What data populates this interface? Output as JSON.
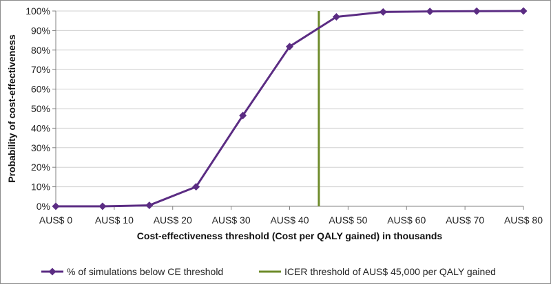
{
  "chart_data": {
    "type": "line",
    "title": "",
    "xlabel": "Cost-effectiveness threshold (Cost per QALY gained) in thousands",
    "ylabel": "Probability of cost-effectiveness",
    "x": [
      0,
      8,
      16,
      24,
      32,
      40,
      48,
      56,
      64,
      72,
      80
    ],
    "xlim": [
      0,
      80
    ],
    "ylim": [
      0,
      100
    ],
    "x_ticks": [
      0,
      10,
      20,
      30,
      40,
      50,
      60,
      70,
      80
    ],
    "x_tick_labels": [
      "AUS$ 0",
      "AUS$ 10",
      "AUS$ 20",
      "AUS$ 30",
      "AUS$ 40",
      "AUS$ 50",
      "AUS$ 60",
      "AUS$ 70",
      "AUS$ 80"
    ],
    "y_ticks": [
      0,
      10,
      20,
      30,
      40,
      50,
      60,
      70,
      80,
      90,
      100
    ],
    "y_tick_labels": [
      "0%",
      "10%",
      "20%",
      "30%",
      "40%",
      "50%",
      "60%",
      "70%",
      "80%",
      "90%",
      "100%"
    ],
    "grid": "horizontal",
    "legend_position": "bottom",
    "series": [
      {
        "name": "% of simulations below CE threshold",
        "values": [
          0,
          0,
          0.5,
          10,
          46.5,
          81.8,
          97,
          99.5,
          99.8,
          99.9,
          100
        ],
        "color": "#5b2c83",
        "marker": "diamond"
      }
    ],
    "reference_lines": [
      {
        "name": "ICER threshold of AUS$ 45,000 per QALY gained",
        "x": 45,
        "color": "#6e8b2a"
      }
    ]
  }
}
